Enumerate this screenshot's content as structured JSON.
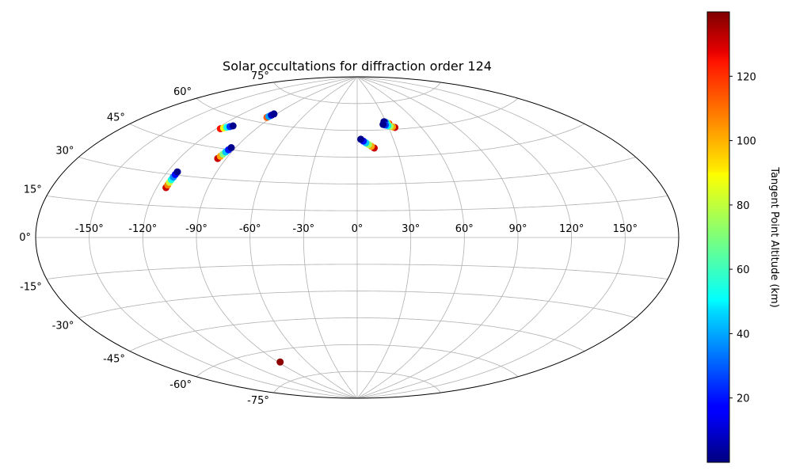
{
  "chart_data": {
    "type": "scatter",
    "projection": "aitoff",
    "title": "Solar occultations for diffraction order 124",
    "xlabel": "",
    "ylabel": "",
    "grid": true,
    "longitude_ticks": [
      "-150°",
      "-120°",
      "-90°",
      "-60°",
      "-30°",
      "0°",
      "30°",
      "60°",
      "90°",
      "120°",
      "150°"
    ],
    "latitude_ticks": [
      "75°",
      "60°",
      "45°",
      "30°",
      "15°",
      "0°",
      "-15°",
      "-30°",
      "-45°",
      "-60°",
      "-75°"
    ],
    "colorbar": {
      "label": "Tangent Point Altitude (km)",
      "colormap": "jet",
      "range": [
        0,
        140
      ],
      "ticks": [
        "20",
        "40",
        "60",
        "80",
        "100",
        "120"
      ],
      "tick_values": [
        20,
        40,
        60,
        80,
        100,
        120
      ]
    },
    "series": [
      {
        "lon": [
          -92.5,
          -93,
          -93.5,
          -94
        ],
        "lat": [
          65,
          64.2,
          63.4,
          62.8
        ],
        "alt": [
          2,
          8,
          40,
          110
        ]
      },
      {
        "lon": [
          -111,
          -112.5,
          -114,
          -115.5,
          -117
        ],
        "lat": [
          56,
          55.4,
          54.8,
          54.2,
          53.6
        ],
        "alt": [
          2,
          25,
          55,
          85,
          120
        ]
      },
      {
        "lon": [
          -93,
          -93.5,
          -94,
          -94.5,
          -95,
          -95.5
        ],
        "lat": [
          46,
          44.8,
          43.6,
          42.4,
          41.2,
          40
        ],
        "alt": [
          2,
          20,
          45,
          70,
          100,
          130
        ]
      },
      {
        "lon": [
          -114,
          -114.1,
          -114.2,
          -114.3,
          -114.4,
          -114.5,
          -114.6
        ],
        "lat": [
          31.5,
          30.2,
          28.9,
          27.6,
          26.3,
          25,
          23.7
        ],
        "alt": [
          2,
          18,
          36,
          55,
          80,
          105,
          130
        ]
      },
      {
        "lon": [
          3,
          5,
          7,
          9,
          11,
          13
        ],
        "lat": [
          55,
          54,
          53,
          52,
          51,
          50
        ],
        "alt": [
          2,
          20,
          45,
          75,
          100,
          130
        ]
      },
      {
        "lon": [
          28,
          29,
          30,
          31,
          32
        ],
        "lat": [
          64.5,
          64.2,
          63.9,
          63.6,
          63.3
        ],
        "alt": [
          2,
          30,
          60,
          90,
          120
        ]
      },
      {
        "lon": [
          26,
          28,
          30,
          32,
          34,
          36
        ],
        "lat": [
          63,
          62.6,
          62.2,
          61.8,
          61.4,
          61
        ],
        "alt": [
          2,
          25,
          50,
          75,
          100,
          130
        ]
      },
      {
        "lon": [
          -88
        ],
        "lat": [
          -66
        ],
        "alt": [
          138
        ]
      }
    ]
  }
}
